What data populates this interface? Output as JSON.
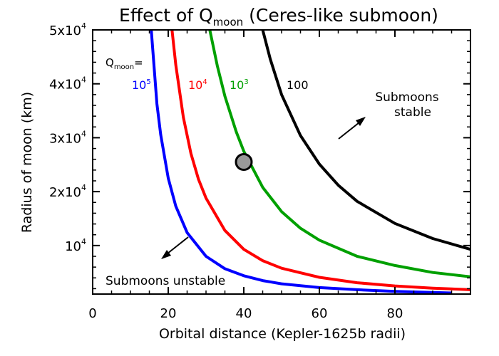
{
  "chart_data": {
    "type": "line",
    "title": {
      "prefix": "Effect of Q",
      "subscript": "moon",
      "suffix": " (Ceres-like submoon)"
    },
    "xlabel": "Orbital distance (Kepler-1625b radii)",
    "ylabel": "Radius of moon (km)",
    "xlim": [
      0,
      100
    ],
    "ylim": [
      1000,
      50000
    ],
    "x_ticks": [
      {
        "value": 0,
        "label": "0"
      },
      {
        "value": 20,
        "label": "20"
      },
      {
        "value": 40,
        "label": "40"
      },
      {
        "value": 60,
        "label": "60"
      },
      {
        "value": 80,
        "label": "80"
      }
    ],
    "y_ticks": [
      {
        "value": 10000,
        "base": "10",
        "exp": "4"
      },
      {
        "value": 20000,
        "base": "2x10",
        "exp": "4"
      },
      {
        "value": 30000,
        "base": "3x10",
        "exp": "4"
      },
      {
        "value": 40000,
        "base": "4x10",
        "exp": "4"
      },
      {
        "value": 50000,
        "base": "5x10",
        "exp": "4"
      }
    ],
    "legend_heading": {
      "main": "Q",
      "sub": "moon",
      "suffix": "="
    },
    "series": [
      {
        "name": {
          "base": "10",
          "exp": "5"
        },
        "color": "#0000ff",
        "x": [
          15.5,
          17,
          18,
          20,
          22,
          25,
          30,
          35,
          40,
          45,
          50,
          60,
          70,
          80,
          95
        ],
        "y": [
          50000,
          36300,
          30600,
          22500,
          17300,
          12400,
          8000,
          5700,
          4400,
          3500,
          2900,
          2200,
          1800,
          1500,
          1200
        ]
      },
      {
        "name": {
          "base": "10",
          "exp": "4"
        },
        "color": "#ff0000",
        "x": [
          21,
          22,
          24,
          26,
          28,
          30,
          35,
          40,
          45,
          50,
          60,
          70,
          80,
          90,
          100
        ],
        "y": [
          50000,
          43500,
          33800,
          27100,
          22300,
          18800,
          12800,
          9300,
          7200,
          5800,
          4100,
          3100,
          2500,
          2100,
          1800
        ]
      },
      {
        "name": {
          "base": "10",
          "exp": "3"
        },
        "color": "#00a000",
        "x": [
          31,
          33,
          35,
          38,
          40,
          45,
          50,
          55,
          60,
          70,
          80,
          90,
          100
        ],
        "y": [
          50000,
          43300,
          37700,
          31100,
          27500,
          20800,
          16300,
          13200,
          11000,
          8000,
          6300,
          5000,
          4200
        ]
      },
      {
        "name": {
          "base": "100",
          "exp": ""
        },
        "color": "#000000",
        "x": [
          45,
          47,
          50,
          55,
          60,
          65,
          70,
          80,
          90,
          100
        ],
        "y": [
          50000,
          44600,
          38000,
          30400,
          25100,
          21200,
          18200,
          14100,
          11300,
          9300
        ]
      }
    ],
    "marker": {
      "x": 40,
      "y": 25500,
      "color": "#999999"
    },
    "annotations": {
      "stable_line1": "Submoons",
      "stable_line2": "stable",
      "unstable": "Submoons unstable"
    },
    "grid": false,
    "legend": "inline labels at top"
  }
}
